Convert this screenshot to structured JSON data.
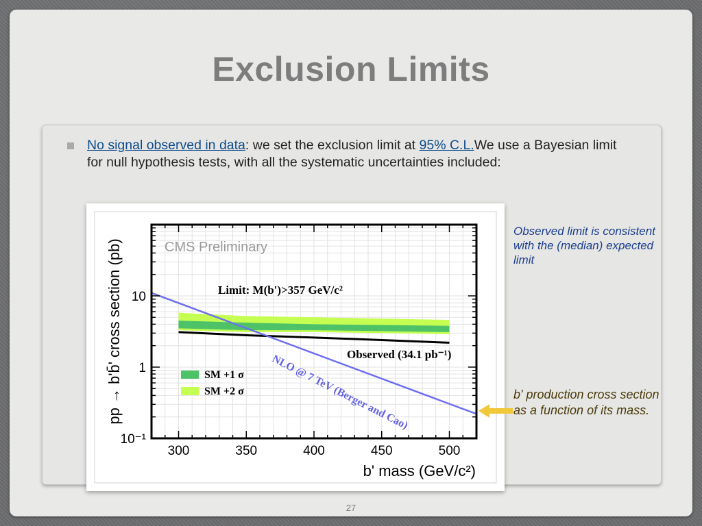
{
  "slide": {
    "title": "Exclusion Limits",
    "page_number": "27",
    "bullet": {
      "link1": "No signal observed in data",
      "text1": ": we set the exclusion limit at ",
      "link2": "95% C.L.",
      "text2": "We use a Bayesian limit for null hypothesis tests, with all the systematic uncertainties included:"
    },
    "notes": {
      "observed": "Observed limit is consistent with the (median) expected limit",
      "production": "b' production cross section as a function of its mass."
    }
  },
  "colors": {
    "sm1": "#4ec267",
    "sm2": "#c4ff52",
    "observed": "#000000",
    "theory": "#6f6ff0",
    "arrow": "#f0c83a",
    "note_blue": "#1b3e8e"
  },
  "chart_data": {
    "type": "line",
    "title": "",
    "xlabel": "b' mass (GeV/c²)",
    "ylabel": "pp → b'b̄' cross section (pb)",
    "xlim": [
      280,
      520
    ],
    "ylim": [
      0.1,
      100
    ],
    "yscale": "log",
    "x_ticks": [
      300,
      350,
      400,
      450,
      500
    ],
    "x_tick_labels": [
      "300",
      "350",
      "400",
      "450",
      "500"
    ],
    "y_ticks": [
      0.1,
      1,
      10
    ],
    "y_tick_labels": [
      "10⁻¹",
      "1",
      "10"
    ],
    "grid": true,
    "annotations": {
      "experiment": "CMS Preliminary",
      "limit": "Limit: M(b')>357 GeV/c²",
      "theory_label": "NLO @ 7 TeV (Berger and Cao)"
    },
    "legend": {
      "placement": "lower-left",
      "entries": [
        "SM +1 σ",
        "SM +2 σ"
      ]
    },
    "series": [
      {
        "name": "Observed (34.1 pb⁻¹)",
        "x": [
          300,
          350,
          400,
          450,
          500
        ],
        "y": [
          3.1,
          2.8,
          2.6,
          2.4,
          2.2
        ]
      },
      {
        "name": "NLO @ 7 TeV (Berger and Cao)",
        "x": [
          280,
          520
        ],
        "y": [
          11.0,
          0.22
        ]
      }
    ],
    "bands": [
      {
        "name": "SM +2 σ",
        "x": [
          300,
          350,
          400,
          450,
          500
        ],
        "lower": [
          3.3,
          3.1,
          3.1,
          3.0,
          2.9
        ],
        "upper": [
          5.8,
          5.2,
          5.0,
          4.8,
          4.6
        ]
      },
      {
        "name": "SM +1 σ",
        "x": [
          300,
          350,
          400,
          450,
          500
        ],
        "lower": [
          3.5,
          3.3,
          3.3,
          3.2,
          3.1
        ],
        "upper": [
          4.5,
          4.2,
          4.0,
          3.9,
          3.8
        ]
      }
    ]
  }
}
